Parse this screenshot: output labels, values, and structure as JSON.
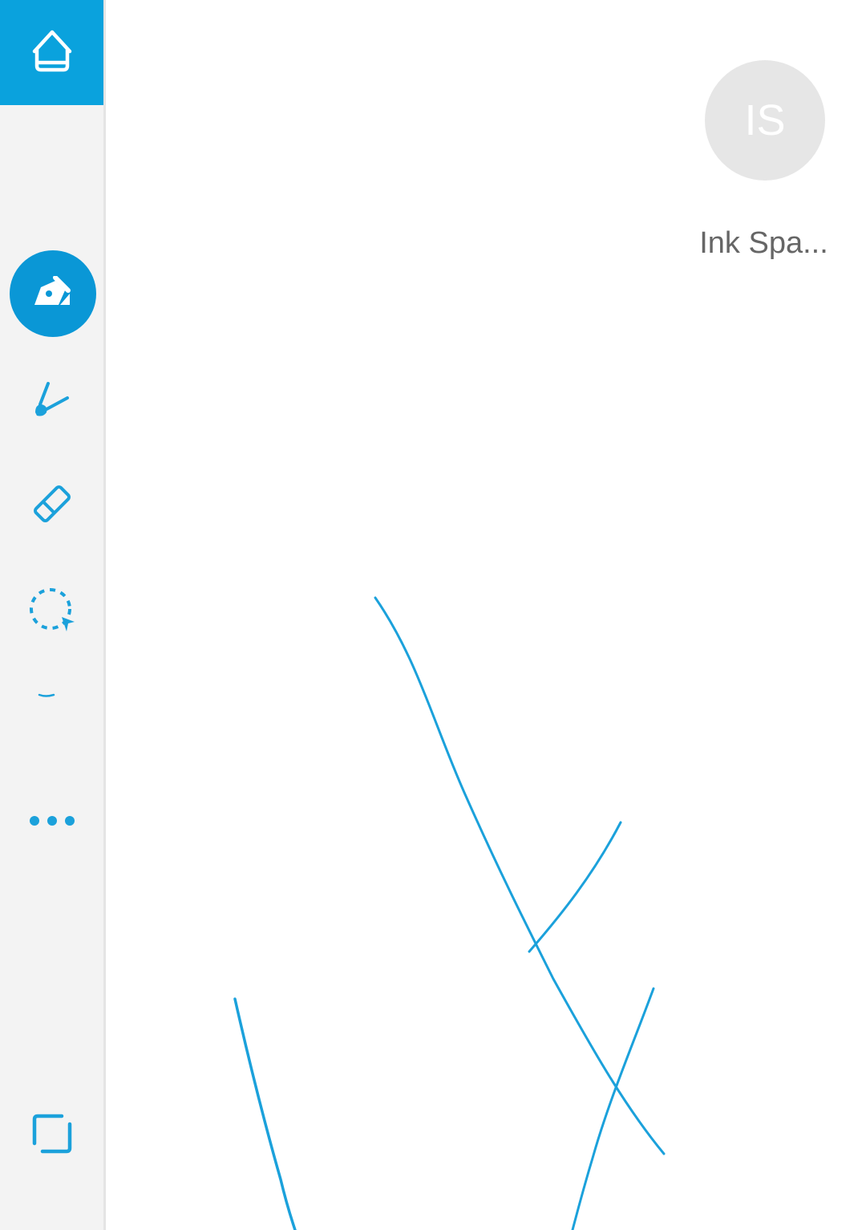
{
  "sidebar": {
    "home": {
      "icon": "home-icon"
    },
    "tools": [
      {
        "name": "pen",
        "icon": "pen-icon",
        "active": true
      },
      {
        "name": "highlighter",
        "icon": "highlighter-icon",
        "active": false
      },
      {
        "name": "eraser",
        "icon": "eraser-icon",
        "active": false
      },
      {
        "name": "lasso-select",
        "icon": "lasso-select-icon",
        "active": false
      },
      {
        "name": "more",
        "icon": "more-dots-icon",
        "active": false
      },
      {
        "name": "fit-screen",
        "icon": "fit-screen-icon",
        "active": false
      }
    ]
  },
  "user": {
    "initials": "IS",
    "name": "Ink Spa..."
  },
  "colors": {
    "accent": "#0aa2dd",
    "ink": "#1ba1db",
    "sidebar_bg": "#f3f3f3",
    "avatar_bg": "#e6e6e6"
  }
}
